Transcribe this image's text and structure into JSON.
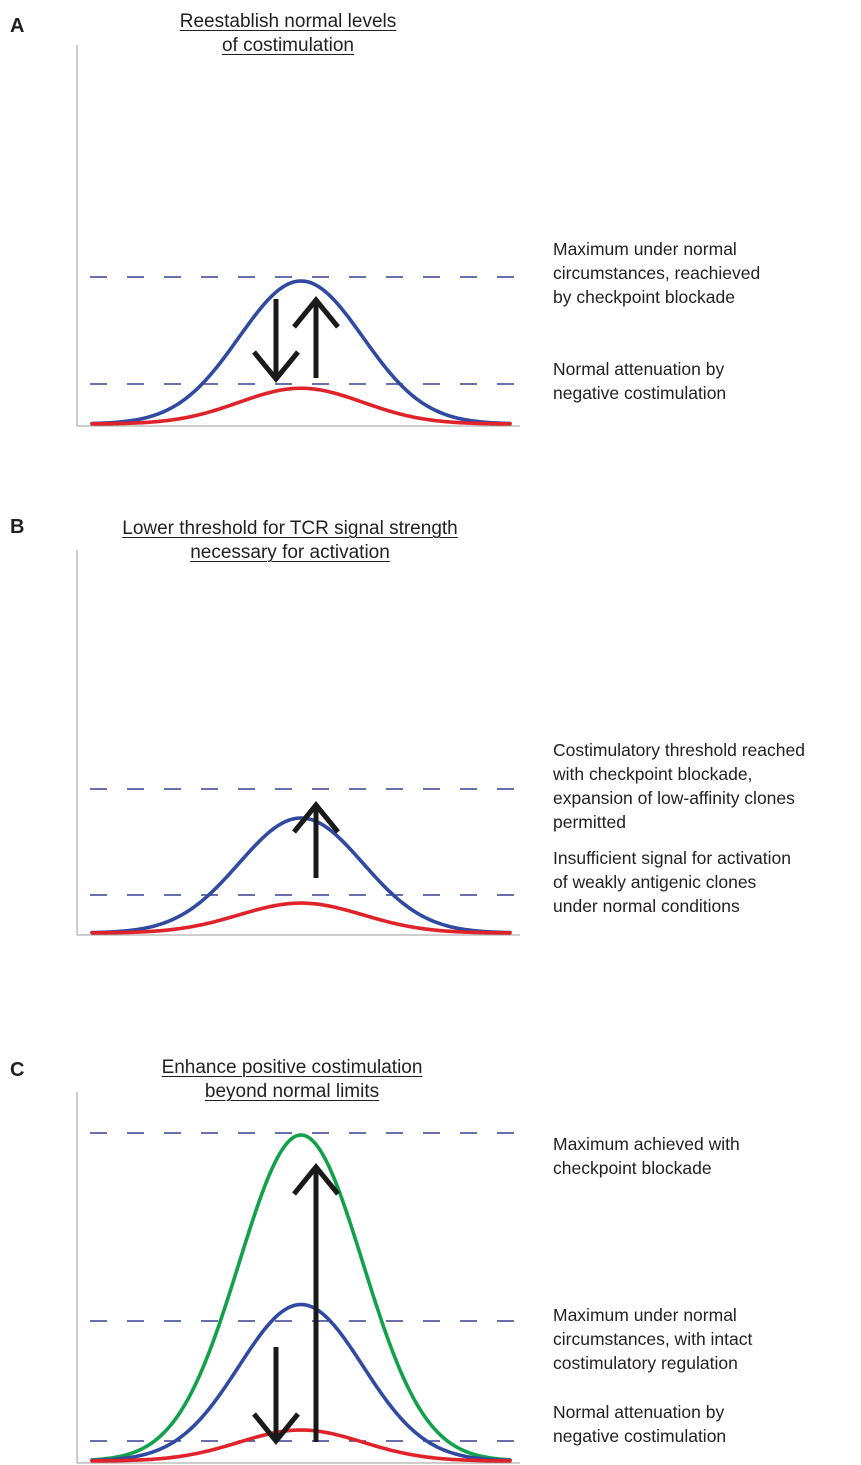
{
  "colors": {
    "text": "#231f20",
    "axis": "#9d9d9d",
    "dashed_line": "#3a3f93",
    "blue_curve": "#2f4aa0",
    "red_curve": "#e0222a",
    "green_curve": "#12a14b",
    "arrow": "#1a1a1a"
  },
  "panels": [
    {
      "letter": "A",
      "title_lines": [
        "Reestablish normal levels",
        "of costimulation"
      ],
      "annotations": [
        {
          "lines": [
            "Maximum under normal",
            "circumstances, reachieved",
            "by checkpoint blockade"
          ]
        },
        {
          "lines": [
            "Normal attenuation by",
            "negative costimulation"
          ]
        }
      ],
      "curves": [
        {
          "color": "blue",
          "relative_peak": 1.0
        },
        {
          "color": "red",
          "relative_peak": 0.25
        }
      ],
      "arrows": [
        "down",
        "up"
      ]
    },
    {
      "letter": "B",
      "title_lines": [
        "Lower threshold for TCR signal strength",
        "necessary for activation"
      ],
      "annotations": [
        {
          "lines": [
            "Costimulatory threshold reached",
            "with checkpoint blockade,",
            "expansion of low-affinity clones",
            "permitted"
          ]
        },
        {
          "lines": [
            "Insufficient signal for activation",
            "of weakly antigenic clones",
            "under normal conditions"
          ]
        }
      ],
      "curves": [
        {
          "color": "blue",
          "relative_peak": 1.0
        },
        {
          "color": "red",
          "relative_peak": 0.26
        }
      ],
      "arrows": [
        "up"
      ]
    },
    {
      "letter": "C",
      "title_lines": [
        "Enhance positive costimulation",
        "beyond normal limits"
      ],
      "annotations": [
        {
          "lines": [
            "Maximum achieved with",
            "checkpoint blockade"
          ]
        },
        {
          "lines": [
            "Maximum under normal",
            "circumstances, with intact",
            "costimulatory regulation"
          ]
        },
        {
          "lines": [
            "Normal attenuation by",
            "negative costimulation"
          ]
        }
      ],
      "curves": [
        {
          "color": "green",
          "relative_peak": 1.0
        },
        {
          "color": "blue",
          "relative_peak": 0.48
        },
        {
          "color": "red",
          "relative_peak": 0.095
        }
      ],
      "arrows": [
        "down",
        "up"
      ]
    }
  ]
}
